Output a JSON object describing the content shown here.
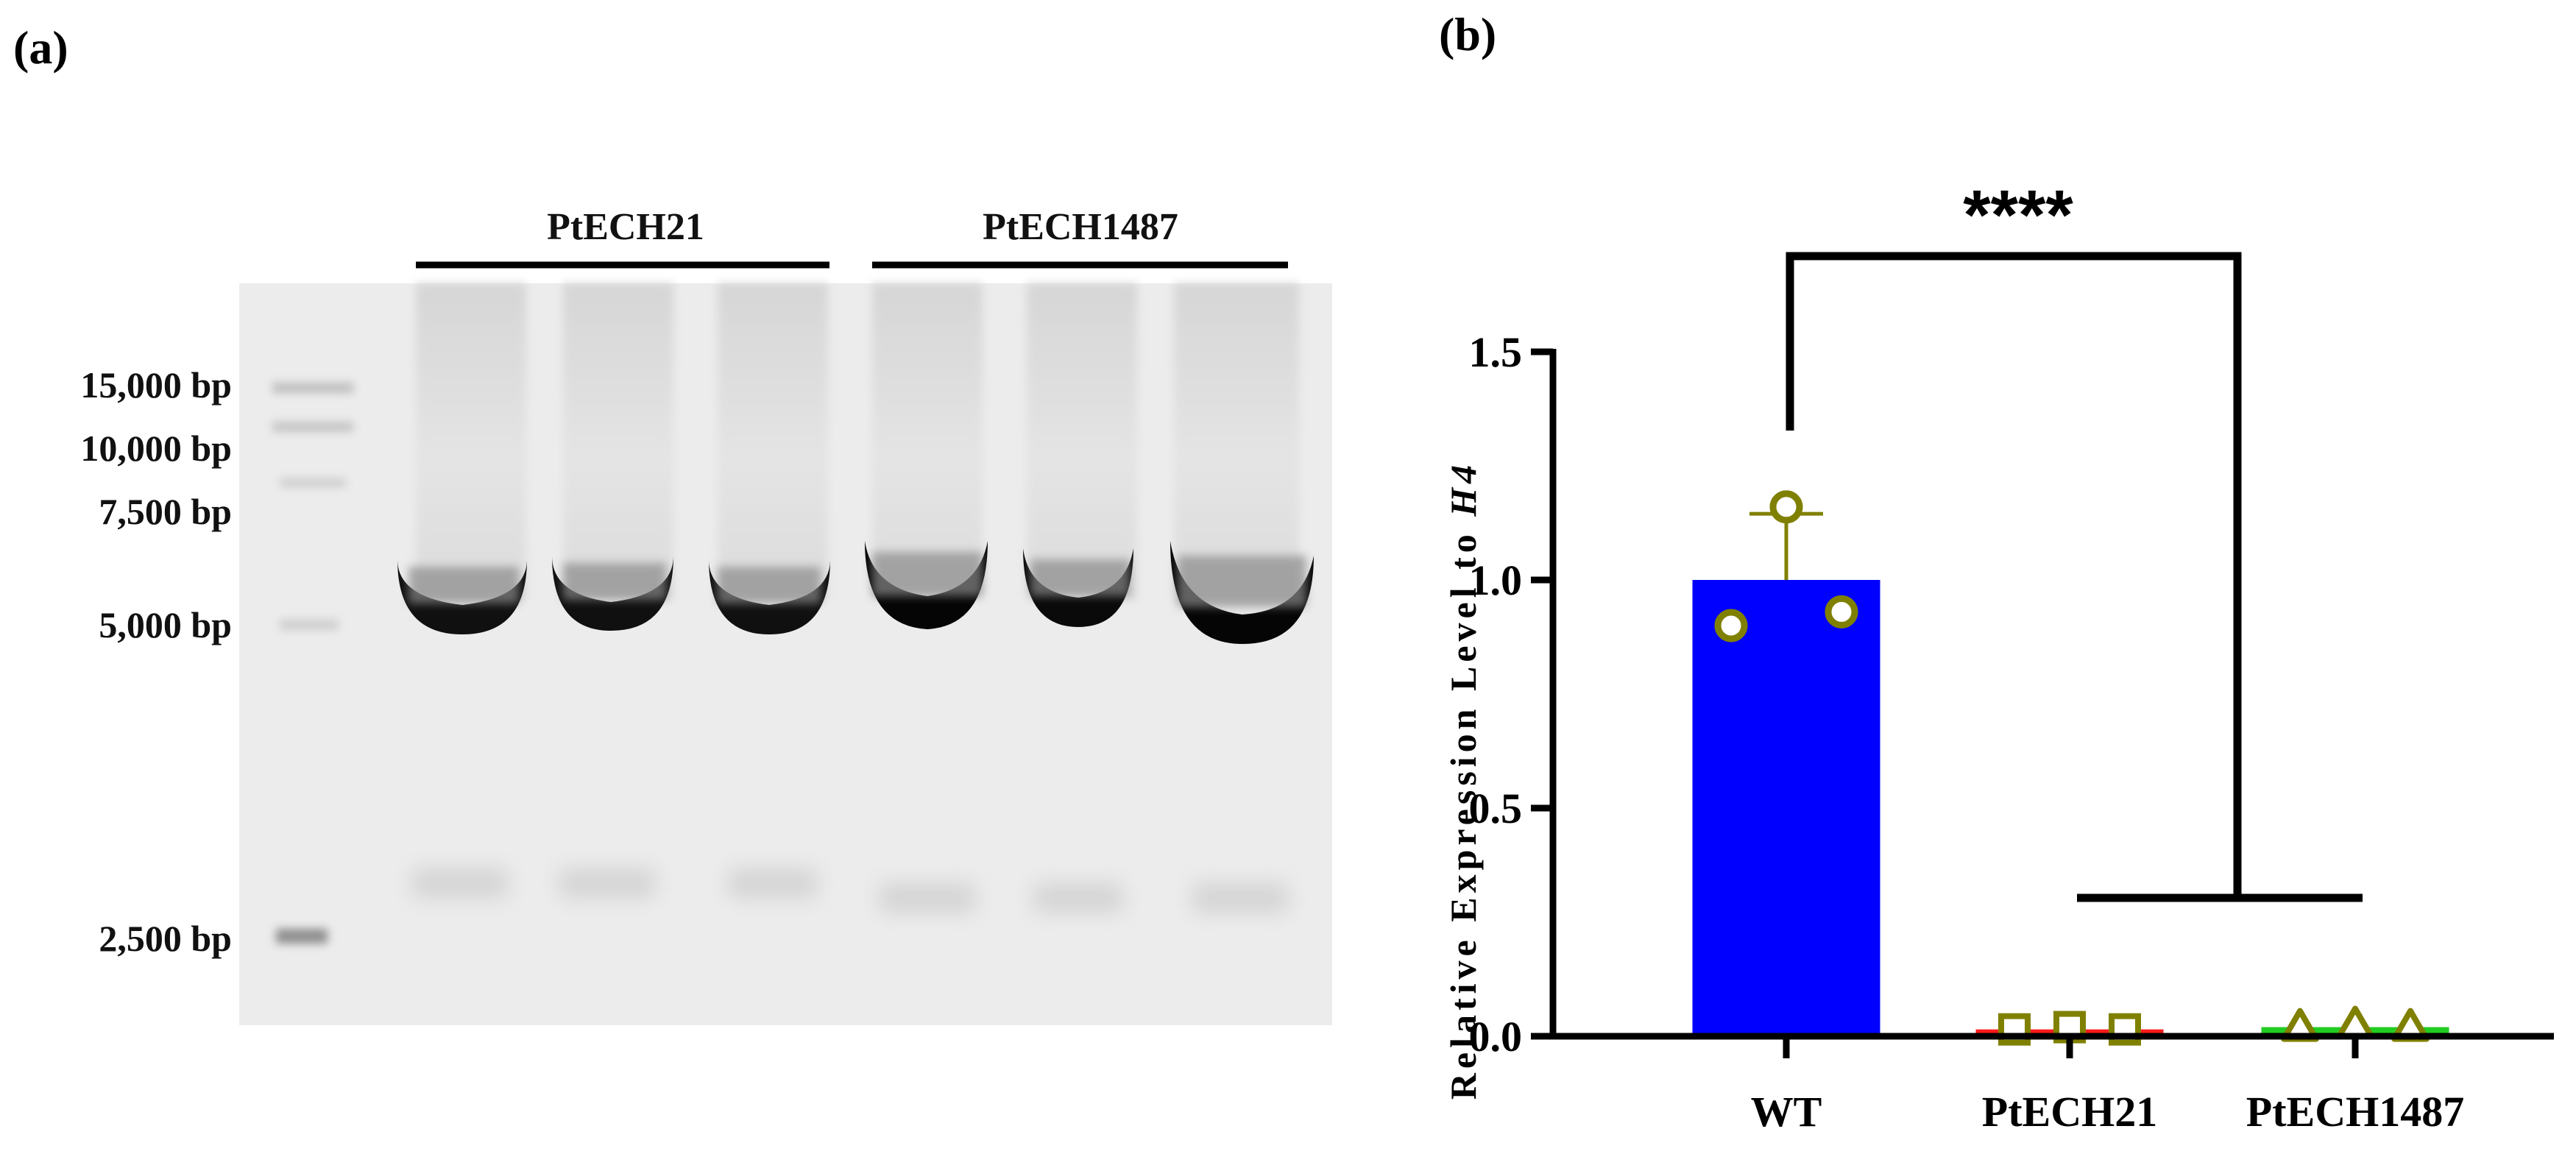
{
  "panel_a": {
    "label": "(a)",
    "groups": [
      "PtECH21",
      "PtECH1487"
    ],
    "ladder": [
      "15,000 bp",
      "10,000 bp",
      "7,500 bp",
      "5,000 bp",
      "2,500 bp"
    ]
  },
  "panel_b": {
    "label": "(b)"
  },
  "chart_data": {
    "type": "bar",
    "title": "",
    "xlabel": "",
    "ylabel": "Relative Expression Level to H4",
    "ylabel_main": "Relative Expression Level to ",
    "ylabel_italic": "H4",
    "ylim": [
      0,
      1.5
    ],
    "yticks": [
      0.0,
      0.5,
      1.0,
      1.5
    ],
    "ytick_labels": [
      "0.0",
      "0.5",
      "1.0",
      "1.5"
    ],
    "categories": [
      "WT",
      "PtECH21",
      "PtECH1487"
    ],
    "values": [
      1.0,
      0.015,
      0.02
    ],
    "error_upper": [
      0.145,
      0.0,
      0.0
    ],
    "bar_colors": [
      "#0000ff",
      "#ff1a1a",
      "#22cc22"
    ],
    "marker_color": "#808000",
    "points": [
      {
        "marker": "circle",
        "values": [
          0.9,
          1.16,
          0.93
        ]
      },
      {
        "marker": "square",
        "values": [
          0.015,
          0.02,
          0.015
        ]
      },
      {
        "marker": "triangle",
        "values": [
          0.02,
          0.025,
          0.02
        ]
      }
    ],
    "significance": "****",
    "grid": false
  }
}
